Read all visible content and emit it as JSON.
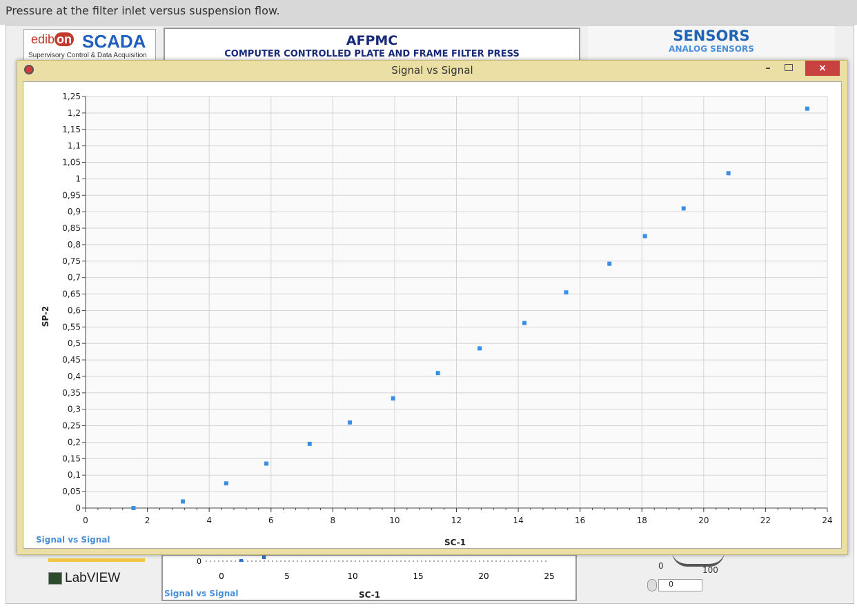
{
  "caption": "Pressure at the filter inlet versus suspension flow.",
  "logo": {
    "edib": "edib",
    "on": "on",
    "scada": "SCADA",
    "subtitle": "Supervisory Control & Data Acquisition"
  },
  "app": {
    "title": "AFPMC",
    "subtitle": "COMPUTER CONTROLLED PLATE AND FRAME FILTER PRESS"
  },
  "sensors": {
    "title": "SENSORS",
    "subtitle": "ANALOG SENSORS"
  },
  "window": {
    "title": "Signal vs Signal",
    "minimize": "–",
    "close": "×"
  },
  "labview": "LabVIEW",
  "bottom_graph": {
    "legend": "Signal vs Signal",
    "xlabel": "SC-1",
    "ytick": "0",
    "xticks": [
      "0",
      "5",
      "10",
      "15",
      "20",
      "25"
    ],
    "points": [
      [
        1.5,
        0
      ],
      [
        3.2,
        0.02
      ]
    ]
  },
  "knob": {
    "min": "0",
    "max": "100",
    "value": "0"
  },
  "chart_data": {
    "type": "scatter",
    "legend": "Signal vs Signal",
    "xlabel": "SC-1",
    "ylabel": "SP-2",
    "xlim": [
      0,
      24
    ],
    "ylim": [
      0,
      1.25
    ],
    "xticks": [
      "0",
      "2",
      "4",
      "6",
      "8",
      "10",
      "12",
      "14",
      "16",
      "18",
      "20",
      "22",
      "24"
    ],
    "yticks": [
      "0",
      "0,05",
      "0,1",
      "0,15",
      "0,2",
      "0,25",
      "0,3",
      "0,35",
      "0,4",
      "0,45",
      "0,5",
      "0,55",
      "0,6",
      "0,65",
      "0,7",
      "0,75",
      "0,8",
      "0,85",
      "0,9",
      "0,95",
      "1",
      "1,05",
      "1,1",
      "1,15",
      "1,2",
      "1,25"
    ],
    "grid": true,
    "color": "#3a8ee6",
    "x": [
      1.55,
      3.15,
      4.55,
      5.85,
      7.25,
      8.55,
      9.95,
      11.4,
      12.75,
      14.2,
      15.55,
      16.95,
      18.1,
      19.35,
      20.8,
      23.35
    ],
    "y": [
      0.0,
      0.02,
      0.075,
      0.135,
      0.195,
      0.26,
      0.333,
      0.41,
      0.485,
      0.562,
      0.655,
      0.742,
      0.826,
      0.91,
      1.017,
      1.213
    ]
  }
}
